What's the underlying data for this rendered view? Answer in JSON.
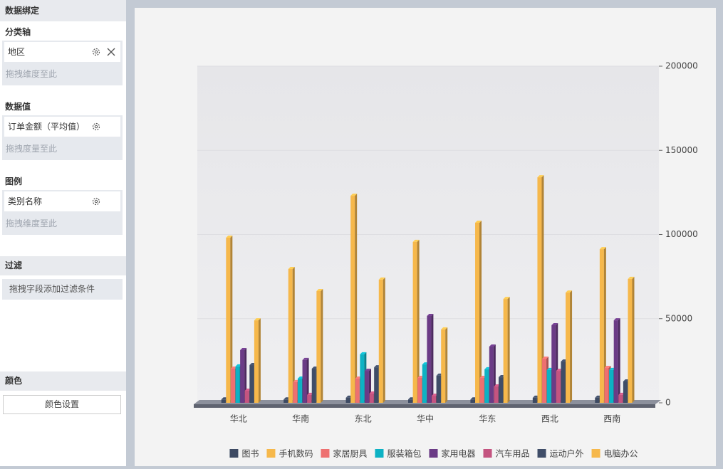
{
  "panel": {
    "title": "数据绑定",
    "sections": [
      {
        "label": "分类轴",
        "field": "地区",
        "placeholder": "拖拽维度至此"
      },
      {
        "label": "数据值",
        "field": "订单金额（平均值）",
        "placeholder": "拖拽度量至此"
      },
      {
        "label": "图例",
        "field": "类别名称",
        "placeholder": "拖拽维度至此"
      }
    ],
    "filter": {
      "label": "过滤",
      "placeholder": "拖拽字段添加过滤条件"
    },
    "color": {
      "label": "颜色",
      "button": "颜色设置"
    }
  },
  "chart_data": {
    "type": "bar3d",
    "categories": [
      "华北",
      "华南",
      "东北",
      "华中",
      "华东",
      "西北",
      "西南"
    ],
    "series": [
      {
        "name": "图书",
        "color": "#3d4a63",
        "values": [
          2000,
          2000,
          3000,
          2000,
          2000,
          3000,
          3000
        ]
      },
      {
        "name": "手机数码",
        "color": "#f6b84b",
        "values": [
          98100,
          79500,
          123000,
          95600,
          107000,
          134000,
          91300
        ]
      },
      {
        "name": "家居厨具",
        "color": "#ee7070",
        "values": [
          20300,
          12300,
          14400,
          14800,
          14800,
          26200,
          20700
        ]
      },
      {
        "name": "服装箱包",
        "color": "#0db2c4",
        "values": [
          21600,
          14400,
          28800,
          22800,
          19900,
          19500,
          19500
        ]
      },
      {
        "name": "家用电器",
        "color": "#6b3b86",
        "values": [
          31300,
          25400,
          19000,
          51600,
          33400,
          46100,
          49000
        ]
      },
      {
        "name": "汽车用品",
        "color": "#c45480",
        "values": [
          7200,
          4700,
          5500,
          4200,
          9700,
          19000,
          4700
        ]
      },
      {
        "name": "运动户外",
        "color": "#3f4d68",
        "values": [
          22400,
          20300,
          21100,
          16100,
          15200,
          24500,
          12700
        ]
      },
      {
        "name": "电脑办公",
        "color": "#f6b84b",
        "values": [
          49000,
          66400,
          73200,
          43600,
          61700,
          65500,
          73600
        ]
      }
    ],
    "ylim": [
      0,
      200000
    ],
    "yticks": [
      0,
      50000,
      100000,
      150000,
      200000
    ],
    "grid": true
  }
}
